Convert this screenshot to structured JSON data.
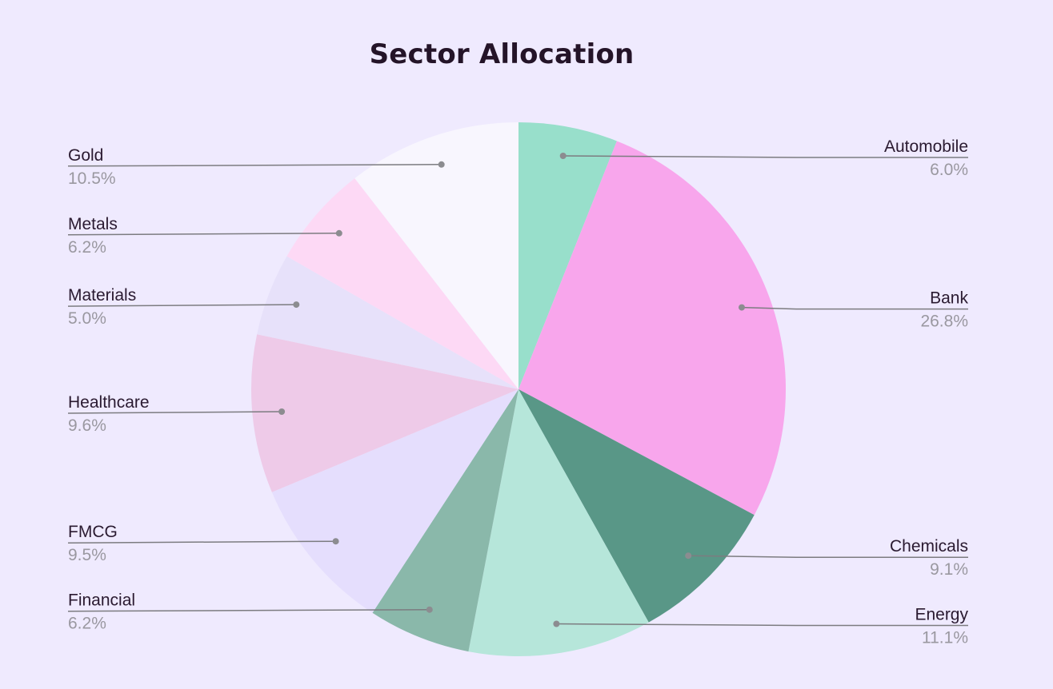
{
  "chart_data": {
    "type": "pie",
    "title": "Sector Allocation",
    "slices": [
      {
        "name": "Automobile",
        "value": 6.0,
        "label": "6.0%",
        "color": "#98dfcb"
      },
      {
        "name": "Bank",
        "value": 26.8,
        "label": "26.8%",
        "color": "#f8a6ec"
      },
      {
        "name": "Chemicals",
        "value": 9.1,
        "label": "9.1%",
        "color": "#599787"
      },
      {
        "name": "Energy",
        "value": 11.1,
        "label": "11.1%",
        "color": "#b6e6da"
      },
      {
        "name": "Financial",
        "value": 6.2,
        "label": "6.2%",
        "color": "#8ab8aa"
      },
      {
        "name": "FMCG",
        "value": 9.5,
        "label": "9.5%",
        "color": "#e5defd"
      },
      {
        "name": "Healthcare",
        "value": 9.6,
        "label": "9.6%",
        "color": "#eecae8"
      },
      {
        "name": "Materials",
        "value": 5.0,
        "label": "5.0%",
        "color": "#e7e1fa"
      },
      {
        "name": "Metals",
        "value": 6.2,
        "label": "6.2%",
        "color": "#fdd9f5"
      },
      {
        "name": "Gold",
        "value": 10.5,
        "label": "10.5%",
        "color": "#f8f6fe"
      }
    ]
  }
}
